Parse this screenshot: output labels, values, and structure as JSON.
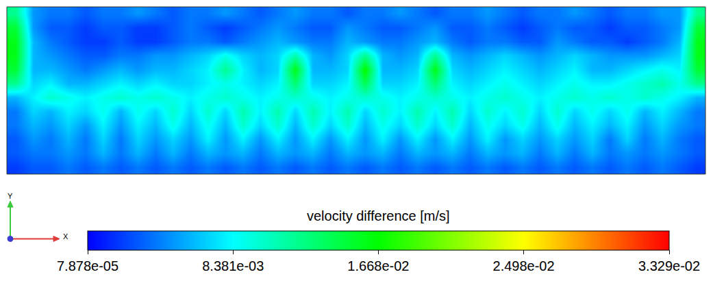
{
  "chart_data": {
    "type": "heatmap",
    "tick_labels": false,
    "annotations": [
      "Y",
      "X"
    ],
    "cells": [
      [
        0.012,
        0.005,
        0.004,
        0.004,
        0.003,
        0.004,
        0.004,
        0.005,
        0.004,
        0.003,
        0.004,
        0.004,
        0.005,
        0.004,
        0.003,
        0.004,
        0.005,
        0.004,
        0.004,
        0.003,
        0.004,
        0.004,
        0.005,
        0.004,
        0.003,
        0.004,
        0.004,
        0.005,
        0.004,
        0.003,
        0.004,
        0.004,
        0.005,
        0.004,
        0.003,
        0.004,
        0.004,
        0.005,
        0.005,
        0.012
      ],
      [
        0.015,
        0.005,
        0.003,
        0.003,
        0.002,
        0.003,
        0.003,
        0.002,
        0.002,
        0.003,
        0.004,
        0.003,
        0.002,
        0.003,
        0.004,
        0.005,
        0.004,
        0.003,
        0.003,
        0.005,
        0.004,
        0.003,
        0.003,
        0.004,
        0.005,
        0.003,
        0.003,
        0.004,
        0.003,
        0.002,
        0.003,
        0.004,
        0.003,
        0.003,
        0.002,
        0.003,
        0.003,
        0.004,
        0.005,
        0.015
      ],
      [
        0.016,
        0.006,
        0.004,
        0.003,
        0.002,
        0.002,
        0.003,
        0.002,
        0.002,
        0.003,
        0.004,
        0.004,
        0.003,
        0.004,
        0.005,
        0.006,
        0.005,
        0.004,
        0.004,
        0.006,
        0.005,
        0.004,
        0.004,
        0.005,
        0.006,
        0.004,
        0.003,
        0.004,
        0.004,
        0.003,
        0.003,
        0.005,
        0.004,
        0.003,
        0.003,
        0.002,
        0.003,
        0.004,
        0.006,
        0.016
      ],
      [
        0.016,
        0.006,
        0.005,
        0.004,
        0.003,
        0.003,
        0.004,
        0.004,
        0.005,
        0.005,
        0.006,
        0.007,
        0.009,
        0.007,
        0.006,
        0.007,
        0.011,
        0.006,
        0.005,
        0.007,
        0.012,
        0.006,
        0.005,
        0.006,
        0.012,
        0.006,
        0.005,
        0.006,
        0.007,
        0.006,
        0.005,
        0.006,
        0.007,
        0.006,
        0.005,
        0.005,
        0.005,
        0.006,
        0.007,
        0.016
      ],
      [
        0.015,
        0.006,
        0.006,
        0.005,
        0.004,
        0.005,
        0.006,
        0.005,
        0.006,
        0.006,
        0.007,
        0.008,
        0.012,
        0.008,
        0.006,
        0.007,
        0.016,
        0.006,
        0.006,
        0.007,
        0.017,
        0.006,
        0.006,
        0.007,
        0.016,
        0.007,
        0.006,
        0.007,
        0.008,
        0.007,
        0.006,
        0.007,
        0.008,
        0.006,
        0.006,
        0.007,
        0.008,
        0.009,
        0.008,
        0.015
      ],
      [
        0.012,
        0.007,
        0.008,
        0.006,
        0.006,
        0.007,
        0.008,
        0.007,
        0.008,
        0.007,
        0.007,
        0.008,
        0.009,
        0.008,
        0.007,
        0.008,
        0.013,
        0.007,
        0.007,
        0.008,
        0.014,
        0.007,
        0.007,
        0.008,
        0.013,
        0.008,
        0.007,
        0.008,
        0.009,
        0.008,
        0.007,
        0.008,
        0.009,
        0.008,
        0.008,
        0.009,
        0.01,
        0.011,
        0.009,
        0.012
      ],
      [
        0.006,
        0.008,
        0.01,
        0.009,
        0.008,
        0.009,
        0.01,
        0.009,
        0.01,
        0.009,
        0.008,
        0.009,
        0.01,
        0.009,
        0.008,
        0.009,
        0.01,
        0.009,
        0.008,
        0.009,
        0.01,
        0.009,
        0.008,
        0.009,
        0.01,
        0.009,
        0.008,
        0.009,
        0.01,
        0.009,
        0.008,
        0.009,
        0.01,
        0.009,
        0.01,
        0.009,
        0.01,
        0.009,
        0.008,
        0.006
      ],
      [
        0.004,
        0.007,
        0.006,
        0.008,
        0.007,
        0.009,
        0.006,
        0.009,
        0.007,
        0.01,
        0.007,
        0.01,
        0.007,
        0.011,
        0.008,
        0.011,
        0.007,
        0.011,
        0.008,
        0.011,
        0.007,
        0.01,
        0.008,
        0.011,
        0.008,
        0.011,
        0.007,
        0.01,
        0.008,
        0.01,
        0.007,
        0.01,
        0.007,
        0.009,
        0.007,
        0.009,
        0.006,
        0.008,
        0.006,
        0.004
      ],
      [
        0.004,
        0.006,
        0.005,
        0.007,
        0.005,
        0.008,
        0.005,
        0.008,
        0.006,
        0.009,
        0.006,
        0.009,
        0.006,
        0.01,
        0.007,
        0.01,
        0.006,
        0.01,
        0.007,
        0.01,
        0.006,
        0.009,
        0.007,
        0.01,
        0.007,
        0.01,
        0.006,
        0.009,
        0.007,
        0.009,
        0.006,
        0.009,
        0.006,
        0.008,
        0.006,
        0.008,
        0.005,
        0.007,
        0.005,
        0.004
      ],
      [
        0.003,
        0.005,
        0.004,
        0.006,
        0.004,
        0.007,
        0.004,
        0.007,
        0.005,
        0.007,
        0.005,
        0.008,
        0.005,
        0.008,
        0.005,
        0.008,
        0.005,
        0.008,
        0.005,
        0.008,
        0.005,
        0.008,
        0.005,
        0.008,
        0.005,
        0.008,
        0.005,
        0.008,
        0.005,
        0.007,
        0.005,
        0.007,
        0.005,
        0.007,
        0.004,
        0.007,
        0.004,
        0.006,
        0.004,
        0.003
      ],
      [
        0.003,
        0.004,
        0.004,
        0.005,
        0.004,
        0.006,
        0.004,
        0.006,
        0.004,
        0.006,
        0.004,
        0.006,
        0.005,
        0.006,
        0.004,
        0.006,
        0.005,
        0.006,
        0.004,
        0.006,
        0.005,
        0.006,
        0.004,
        0.006,
        0.005,
        0.006,
        0.004,
        0.006,
        0.005,
        0.006,
        0.004,
        0.006,
        0.004,
        0.006,
        0.004,
        0.005,
        0.004,
        0.005,
        0.004,
        0.003
      ],
      [
        0.002,
        0.003,
        0.003,
        0.004,
        0.003,
        0.004,
        0.003,
        0.004,
        0.003,
        0.004,
        0.003,
        0.004,
        0.003,
        0.004,
        0.003,
        0.004,
        0.003,
        0.004,
        0.003,
        0.004,
        0.003,
        0.004,
        0.003,
        0.004,
        0.003,
        0.004,
        0.003,
        0.004,
        0.003,
        0.004,
        0.003,
        0.004,
        0.003,
        0.004,
        0.003,
        0.004,
        0.003,
        0.004,
        0.003,
        0.002
      ]
    ],
    "colorbar": {
      "title": "velocity difference [m/s]",
      "range": [
        7.878e-05,
        0.03329
      ],
      "ticks": [
        {
          "value": 7.878e-05,
          "label": "7.878e-05"
        },
        {
          "value": 0.008381,
          "label": "8.381e-03"
        },
        {
          "value": 0.01668,
          "label": "1.668e-02"
        },
        {
          "value": 0.02498,
          "label": "2.498e-02"
        },
        {
          "value": 0.03329,
          "label": "3.329e-02"
        }
      ],
      "colors": [
        "#0000ff",
        "#00ffff",
        "#00ff00",
        "#ffff00",
        "#ff0000"
      ]
    }
  }
}
